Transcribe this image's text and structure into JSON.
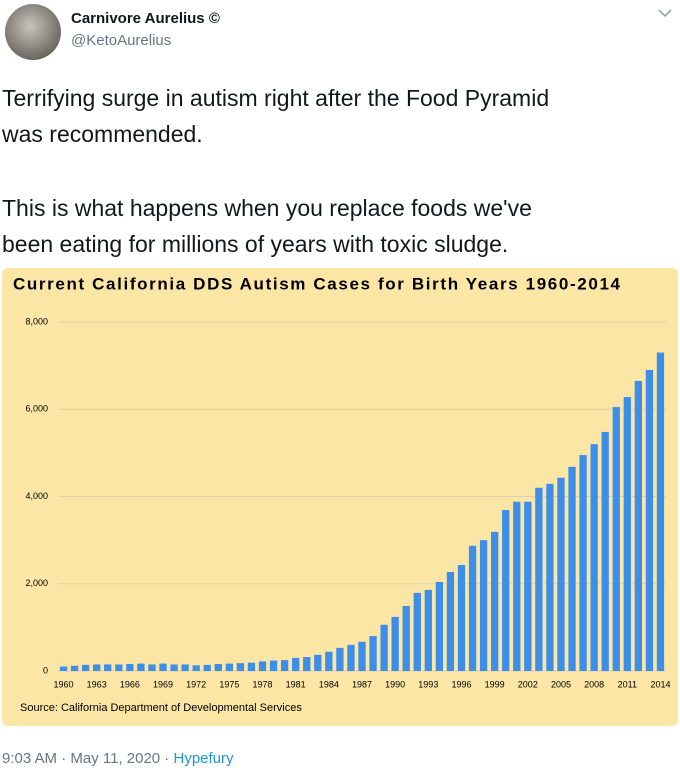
{
  "author": {
    "name": "Carnivore Aurelius ©",
    "handle": "@KetoAurelius"
  },
  "text": [
    [
      "Terrifying surge in autism right after the Food Pyramid",
      "was recommended."
    ],
    [
      "This is what happens when you replace foods we've",
      "been eating for millions of years with toxic sludge."
    ]
  ],
  "footer": {
    "timestamp": "9:03 AM · May 11, 2020 ·",
    "via": "Hypefury"
  },
  "chart_data": {
    "type": "bar",
    "title": "Current California DDS Autism Cases for Birth Years 1960-2014",
    "source": "Source: California Department of Developmental Services",
    "color": "#3d8ee8",
    "categories": [
      "1960",
      null,
      null,
      "1963",
      null,
      null,
      "1966",
      null,
      null,
      "1969",
      null,
      null,
      "1972",
      null,
      null,
      "1975",
      null,
      null,
      "1978",
      null,
      null,
      "1981",
      null,
      null,
      "1984",
      null,
      null,
      "1987",
      null,
      null,
      "1990",
      null,
      null,
      "1993",
      null,
      null,
      "1996",
      null,
      null,
      "1999",
      null,
      null,
      "2002",
      null,
      null,
      "2005",
      null,
      null,
      "2008",
      null,
      null,
      "2011",
      null,
      null,
      "2014"
    ],
    "values": [
      100,
      120,
      140,
      150,
      150,
      150,
      160,
      170,
      150,
      170,
      150,
      150,
      130,
      140,
      160,
      170,
      180,
      190,
      220,
      240,
      250,
      300,
      320,
      370,
      440,
      530,
      600,
      670,
      800,
      1060,
      1240,
      1490,
      1790,
      1860,
      2040,
      2270,
      2430,
      2870,
      3000,
      3190,
      3690,
      3880,
      3880,
      4200,
      4290,
      4430,
      4680,
      4950,
      5200,
      5480,
      6050,
      6280,
      6650,
      6900,
      7300
    ],
    "ylim": [
      0,
      8000
    ],
    "yticks": [
      0,
      {
        "value": 2000,
        "label": "2,000"
      },
      {
        "value": 4000,
        "label": "4,000"
      },
      {
        "value": 6000,
        "label": "6,000"
      },
      {
        "value": 8000,
        "label": "8,000"
      }
    ],
    "grid": true
  }
}
